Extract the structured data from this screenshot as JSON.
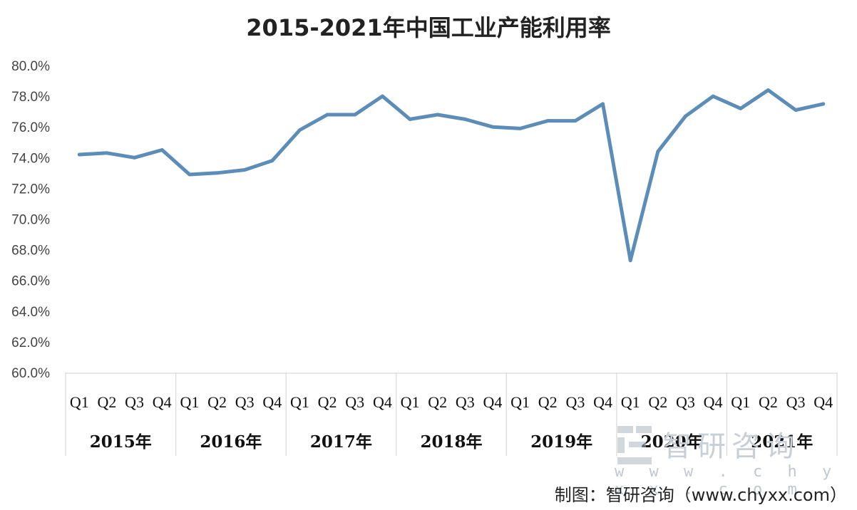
{
  "title": "2015-2021年中国工业产能利用率",
  "watermark": {
    "text": "智研咨询",
    "url": "w w w . c h y x x . c o m"
  },
  "credit": "制图：智研咨询（www.chyxx.com）",
  "chart_data": {
    "type": "line",
    "title": "2015-2021年中国工业产能利用率",
    "ylim": [
      60,
      80
    ],
    "yticks": [
      "60.0%",
      "62.0%",
      "64.0%",
      "66.0%",
      "68.0%",
      "70.0%",
      "72.0%",
      "74.0%",
      "76.0%",
      "78.0%",
      "80.0%"
    ],
    "year_groups": [
      {
        "year": "2015年",
        "quarters": [
          "Q1",
          "Q2",
          "Q3",
          "Q4"
        ]
      },
      {
        "year": "2016年",
        "quarters": [
          "Q1",
          "Q2",
          "Q3",
          "Q4"
        ]
      },
      {
        "year": "2017年",
        "quarters": [
          "Q1",
          "Q2",
          "Q3",
          "Q4"
        ]
      },
      {
        "year": "2018年",
        "quarters": [
          "Q1",
          "Q2",
          "Q3",
          "Q4"
        ]
      },
      {
        "year": "2019年",
        "quarters": [
          "Q1",
          "Q2",
          "Q3",
          "Q4"
        ]
      },
      {
        "year": "2020年",
        "quarters": [
          "Q1",
          "Q2",
          "Q3",
          "Q4"
        ]
      },
      {
        "year": "2021年",
        "quarters": [
          "Q1",
          "Q2",
          "Q3",
          "Q4"
        ]
      }
    ],
    "series": [
      {
        "values": [
          74.2,
          74.3,
          74.0,
          74.5,
          72.9,
          73.0,
          73.2,
          73.8,
          75.8,
          76.8,
          76.8,
          78.0,
          76.5,
          76.8,
          76.5,
          76.0,
          75.9,
          76.4,
          76.4,
          77.5,
          67.3,
          74.4,
          76.7,
          78.0,
          77.2,
          78.4,
          77.1,
          77.5
        ]
      }
    ],
    "line_color": "#5b8db8",
    "grid": false
  }
}
